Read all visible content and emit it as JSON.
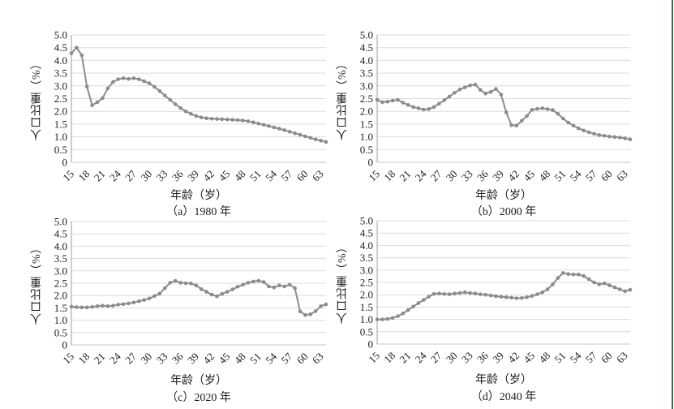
{
  "style": {
    "background": "#ffffff",
    "line_color": "#8c8c8c",
    "marker_color": "#8c8c8c",
    "grid_color": "#dcdcdc",
    "axis_color": "#9c9c9c",
    "text_color": "#1c1c1c",
    "page_border_color": "#456a52"
  },
  "chart_data": [
    {
      "type": "line",
      "panel_id": "a",
      "caption": "（a）1980 年",
      "year": "1980",
      "ylabel": "人口比重（%）",
      "xlabel": "年龄（岁）",
      "ylim": [
        0,
        5
      ],
      "yticks": [
        "5.0",
        "4.5",
        "4.0",
        "3.5",
        "3.0",
        "2.5",
        "2.0",
        "1.5",
        "1.0",
        "0.5",
        "0"
      ],
      "xticks": [
        15,
        18,
        21,
        24,
        27,
        30,
        33,
        36,
        39,
        42,
        45,
        48,
        51,
        54,
        57,
        60,
        63
      ],
      "x_age_start": 15,
      "x_age_end": 64,
      "grid": true,
      "legend": "none",
      "values": [
        4.28,
        4.5,
        4.2,
        2.97,
        2.24,
        2.36,
        2.52,
        2.9,
        3.15,
        3.26,
        3.3,
        3.27,
        3.3,
        3.26,
        3.18,
        3.1,
        2.96,
        2.8,
        2.62,
        2.45,
        2.28,
        2.13,
        2.0,
        1.9,
        1.82,
        1.76,
        1.73,
        1.71,
        1.7,
        1.69,
        1.68,
        1.67,
        1.66,
        1.64,
        1.61,
        1.57,
        1.52,
        1.47,
        1.42,
        1.37,
        1.32,
        1.26,
        1.2,
        1.14,
        1.08,
        1.02,
        0.96,
        0.9,
        0.85,
        0.8
      ]
    },
    {
      "type": "line",
      "panel_id": "b",
      "caption": "（b）2000 年",
      "year": "2000",
      "ylabel": "人口比重（%）",
      "xlabel": "年龄（岁）",
      "ylim": [
        0,
        5
      ],
      "yticks": [
        "5.0",
        "4.5",
        "4.0",
        "3.5",
        "3.0",
        "2.5",
        "2.0",
        "1.5",
        "1.0",
        "0.5",
        "0"
      ],
      "xticks": [
        15,
        18,
        21,
        24,
        27,
        30,
        33,
        36,
        39,
        42,
        45,
        48,
        51,
        54,
        57,
        60,
        63
      ],
      "x_age_start": 15,
      "x_age_end": 64,
      "grid": true,
      "legend": "none",
      "values": [
        2.45,
        2.36,
        2.38,
        2.42,
        2.45,
        2.34,
        2.25,
        2.17,
        2.12,
        2.07,
        2.09,
        2.17,
        2.3,
        2.44,
        2.58,
        2.73,
        2.86,
        2.94,
        3.02,
        3.05,
        2.84,
        2.7,
        2.76,
        2.88,
        2.66,
        1.96,
        1.46,
        1.44,
        1.63,
        1.82,
        2.06,
        2.1,
        2.12,
        2.09,
        2.05,
        1.9,
        1.72,
        1.56,
        1.44,
        1.33,
        1.25,
        1.18,
        1.12,
        1.07,
        1.04,
        1.01,
        0.99,
        0.97,
        0.94,
        0.9
      ]
    },
    {
      "type": "line",
      "panel_id": "c",
      "caption": "（c）2020 年",
      "year": "2020",
      "ylabel": "人口比重（%）",
      "xlabel": "年龄（岁）",
      "ylim": [
        0,
        5
      ],
      "yticks": [
        "5.0",
        "4.5",
        "4.0",
        "3.5",
        "3.0",
        "2.5",
        "2.0",
        "1.5",
        "1.0",
        "0.5",
        "0"
      ],
      "xticks": [
        15,
        18,
        21,
        24,
        27,
        30,
        33,
        36,
        39,
        42,
        45,
        48,
        51,
        54,
        57,
        60,
        63
      ],
      "x_age_start": 15,
      "x_age_end": 64,
      "grid": true,
      "legend": "none",
      "values": [
        1.55,
        1.53,
        1.52,
        1.52,
        1.54,
        1.57,
        1.59,
        1.57,
        1.59,
        1.63,
        1.65,
        1.68,
        1.72,
        1.77,
        1.82,
        1.88,
        1.98,
        2.08,
        2.3,
        2.52,
        2.6,
        2.52,
        2.5,
        2.49,
        2.41,
        2.26,
        2.15,
        2.04,
        1.97,
        2.07,
        2.15,
        2.25,
        2.36,
        2.44,
        2.52,
        2.57,
        2.6,
        2.55,
        2.37,
        2.33,
        2.41,
        2.37,
        2.44,
        2.3,
        1.36,
        1.21,
        1.24,
        1.37,
        1.57,
        1.64
      ]
    },
    {
      "type": "line",
      "panel_id": "d",
      "caption": "（d）2040 年",
      "year": "2040",
      "ylabel": "人口比重（%）",
      "xlabel": "年龄（岁）",
      "ylim": [
        0,
        5
      ],
      "yticks": [
        "5.0",
        "4.5",
        "4.0",
        "3.5",
        "3.0",
        "2.5",
        "2.0",
        "1.5",
        "1.0",
        "0.5",
        "0"
      ],
      "xticks": [
        15,
        18,
        21,
        24,
        27,
        30,
        33,
        36,
        39,
        42,
        45,
        48,
        51,
        54,
        57,
        60,
        63
      ],
      "x_age_start": 15,
      "x_age_end": 64,
      "grid": true,
      "legend": "none",
      "values": [
        1.0,
        1.0,
        1.02,
        1.06,
        1.13,
        1.24,
        1.38,
        1.52,
        1.66,
        1.79,
        1.92,
        2.03,
        2.05,
        2.03,
        2.02,
        2.05,
        2.07,
        2.1,
        2.07,
        2.05,
        2.02,
        2.0,
        1.97,
        1.94,
        1.92,
        1.9,
        1.88,
        1.86,
        1.87,
        1.9,
        1.95,
        2.02,
        2.1,
        2.22,
        2.42,
        2.68,
        2.88,
        2.84,
        2.82,
        2.82,
        2.76,
        2.63,
        2.5,
        2.42,
        2.46,
        2.38,
        2.3,
        2.22,
        2.14,
        2.2
      ]
    }
  ]
}
